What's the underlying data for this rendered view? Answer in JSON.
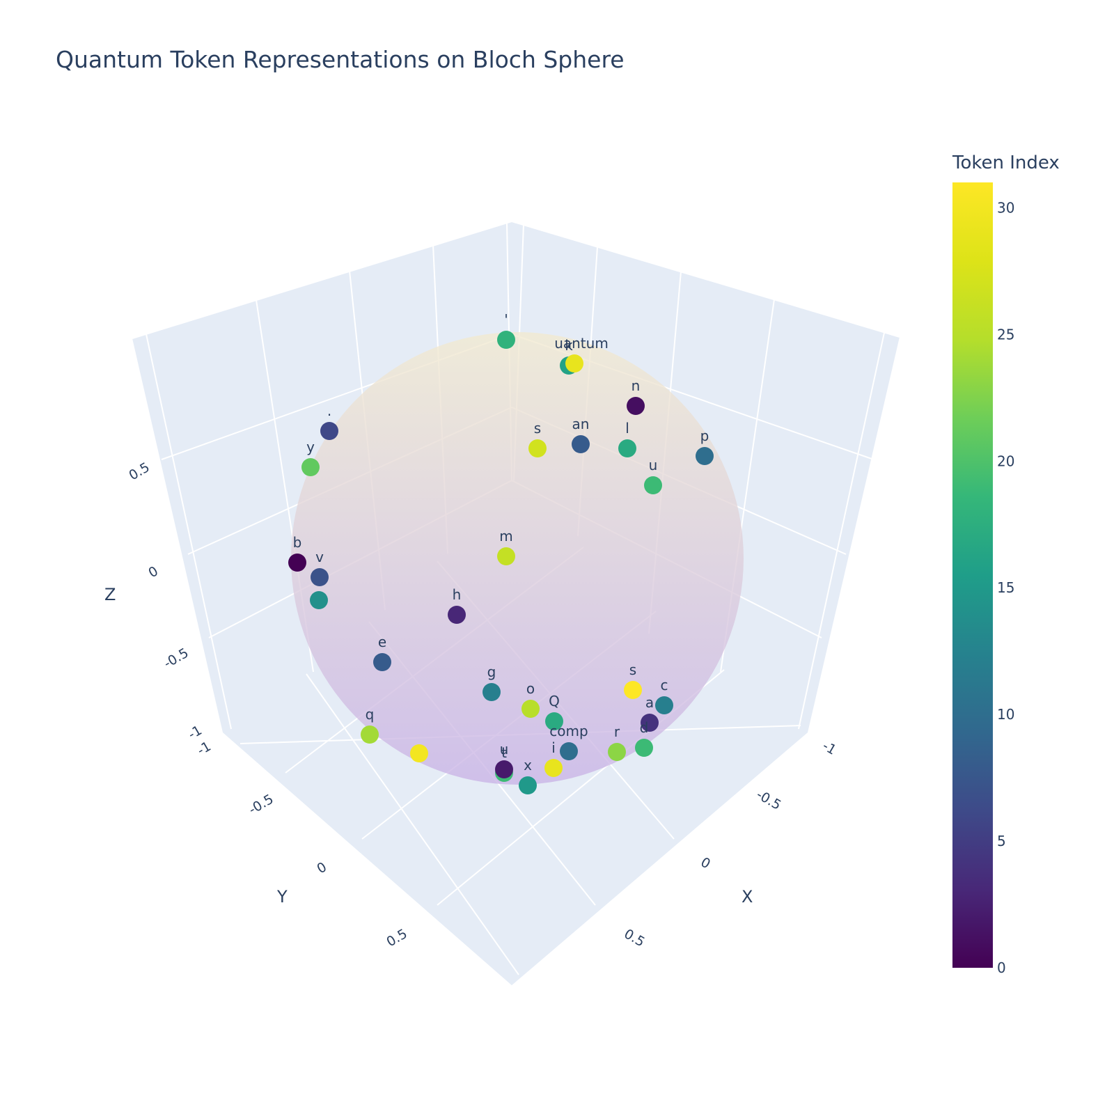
{
  "chart_data": {
    "type": "scatter3d",
    "title": "Quantum Token Representations on Bloch Sphere",
    "axes": {
      "x": {
        "label": "X",
        "range": [
          -1,
          1
        ],
        "ticks": [
          "-1",
          "-0.5",
          "0",
          "0.5"
        ]
      },
      "y": {
        "label": "Y",
        "range": [
          -1,
          1
        ],
        "ticks": [
          "-1",
          "-0.5",
          "0",
          "0.5"
        ]
      },
      "z": {
        "label": "Z",
        "range": [
          -1,
          1
        ],
        "ticks": [
          "-1",
          "-0.5",
          "0",
          "0.5"
        ]
      }
    },
    "colorbar": {
      "title": "Token Index",
      "colorscale": "Viridis",
      "range": [
        0,
        31
      ],
      "ticks": [
        0,
        5,
        10,
        15,
        20,
        25,
        30
      ]
    },
    "sphere": {
      "opacity_hint": "translucent",
      "color_top": "#f2ead0",
      "color_bottom": "#c9b3e6"
    },
    "points": [
      {
        "label": "'",
        "index": 18
      },
      {
        "label": "k",
        "index": 16
      },
      {
        "label": "uantum",
        "index": 29
      },
      {
        "label": "n",
        "index": 1
      },
      {
        "label": ".",
        "index": 6
      },
      {
        "label": "s",
        "index": 27
      },
      {
        "label": "an",
        "index": 8
      },
      {
        "label": "l",
        "index": 17
      },
      {
        "label": "p",
        "index": 10
      },
      {
        "label": "y",
        "index": 21
      },
      {
        "label": "u",
        "index": 19
      },
      {
        "label": "b",
        "index": 0
      },
      {
        "label": "m",
        "index": 26
      },
      {
        "label": "v",
        "index": 7
      },
      {
        "label": "",
        "index": 14
      },
      {
        "label": "h",
        "index": 3
      },
      {
        "label": "e",
        "index": 8
      },
      {
        "label": "g",
        "index": 12
      },
      {
        "label": "s",
        "index": 31
      },
      {
        "label": "c",
        "index": 12
      },
      {
        "label": "o",
        "index": 25
      },
      {
        "label": "Q",
        "index": 17
      },
      {
        "label": "a",
        "index": 4
      },
      {
        "label": "q",
        "index": 24
      },
      {
        "label": "",
        "index": 30
      },
      {
        "label": "comp",
        "index": 10
      },
      {
        "label": "r",
        "index": 23
      },
      {
        "label": "d",
        "index": 19
      },
      {
        "label": "t",
        "index": 19
      },
      {
        "label": "u",
        "index": 2
      },
      {
        "label": "i",
        "index": 29
      },
      {
        "label": "x",
        "index": 15
      }
    ]
  }
}
